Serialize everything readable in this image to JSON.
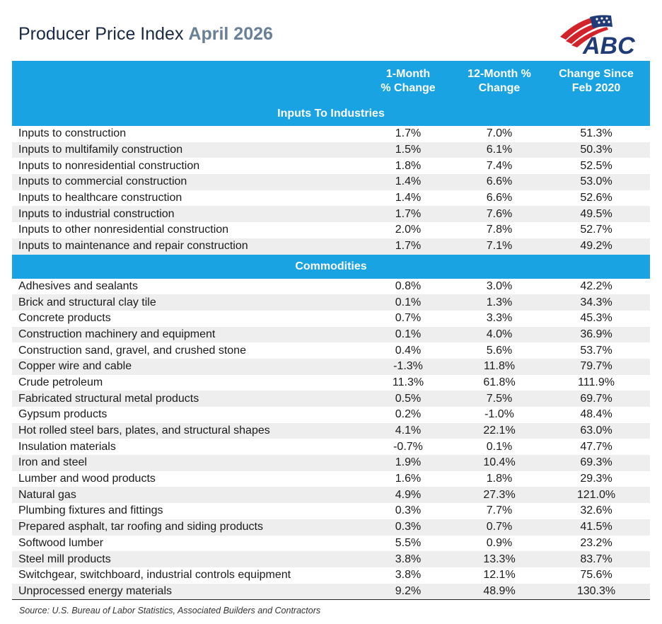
{
  "title": {
    "main": "Producer Price Index",
    "accent": "April 2026"
  },
  "logo": {
    "text": "ABC",
    "colors": {
      "blue": "#1f3b78",
      "red": "#d2232a"
    }
  },
  "table": {
    "headers": [
      "",
      "1-Month\n% Change",
      "12-Month %\nChange",
      "Change Since\nFeb 2020"
    ],
    "sections": [
      {
        "title": "Inputs To Industries",
        "rows": [
          {
            "label": "Inputs to construction",
            "m1": "1.7%",
            "m12": "7.0%",
            "since": "51.3%"
          },
          {
            "label": "Inputs to multifamily construction",
            "m1": "1.5%",
            "m12": "6.1%",
            "since": "50.3%"
          },
          {
            "label": "Inputs to nonresidential construction",
            "m1": "1.8%",
            "m12": "7.4%",
            "since": "52.5%"
          },
          {
            "label": "Inputs to commercial construction",
            "m1": "1.4%",
            "m12": "6.6%",
            "since": "53.0%"
          },
          {
            "label": "Inputs to healthcare construction",
            "m1": "1.4%",
            "m12": "6.6%",
            "since": "52.6%"
          },
          {
            "label": "Inputs to industrial construction",
            "m1": "1.7%",
            "m12": "7.6%",
            "since": "49.5%"
          },
          {
            "label": "Inputs to other nonresidential construction",
            "m1": "2.0%",
            "m12": "7.8%",
            "since": "52.7%"
          },
          {
            "label": "Inputs to maintenance and repair construction",
            "m1": "1.7%",
            "m12": "7.1%",
            "since": "49.2%"
          }
        ]
      },
      {
        "title": "Commodities",
        "rows": [
          {
            "label": "Adhesives and sealants",
            "m1": "0.8%",
            "m12": "3.0%",
            "since": "42.2%"
          },
          {
            "label": "Brick and structural clay tile",
            "m1": "0.1%",
            "m12": "1.3%",
            "since": "34.3%"
          },
          {
            "label": "Concrete products",
            "m1": "0.7%",
            "m12": "3.3%",
            "since": "45.3%"
          },
          {
            "label": "Construction machinery and equipment",
            "m1": "0.1%",
            "m12": "4.0%",
            "since": "36.9%"
          },
          {
            "label": "Construction sand, gravel, and crushed stone",
            "m1": "0.4%",
            "m12": "5.6%",
            "since": "53.7%"
          },
          {
            "label": "Copper wire and cable",
            "m1": "-1.3%",
            "m12": "11.8%",
            "since": "79.7%"
          },
          {
            "label": "Crude petroleum",
            "m1": "11.3%",
            "m12": "61.8%",
            "since": "111.9%"
          },
          {
            "label": "Fabricated structural metal products",
            "m1": "0.5%",
            "m12": "7.5%",
            "since": "69.7%"
          },
          {
            "label": "Gypsum products",
            "m1": "0.2%",
            "m12": "-1.0%",
            "since": "48.4%"
          },
          {
            "label": "Hot rolled steel bars, plates, and structural shapes",
            "m1": "4.1%",
            "m12": "22.1%",
            "since": "63.0%"
          },
          {
            "label": "Insulation materials",
            "m1": "-0.7%",
            "m12": "0.1%",
            "since": "47.7%"
          },
          {
            "label": "Iron and steel",
            "m1": "1.9%",
            "m12": "10.4%",
            "since": "69.3%"
          },
          {
            "label": "Lumber and wood products",
            "m1": "1.6%",
            "m12": "1.8%",
            "since": "29.3%"
          },
          {
            "label": "Natural gas",
            "m1": "4.9%",
            "m12": "27.3%",
            "since": "121.0%"
          },
          {
            "label": "Plumbing fixtures and fittings",
            "m1": "0.3%",
            "m12": "7.7%",
            "since": "32.6%"
          },
          {
            "label": "Prepared asphalt, tar roofing and siding products",
            "m1": "0.3%",
            "m12": "0.7%",
            "since": "41.5%"
          },
          {
            "label": "Softwood lumber",
            "m1": "5.5%",
            "m12": "0.9%",
            "since": "23.2%"
          },
          {
            "label": "Steel mill products",
            "m1": "3.8%",
            "m12": "13.3%",
            "since": "83.7%"
          },
          {
            "label": "Switchgear, switchboard, industrial controls equipment",
            "m1": "3.8%",
            "m12": "12.1%",
            "since": "75.6%"
          },
          {
            "label": "Unprocessed energy materials",
            "m1": "9.2%",
            "m12": "48.9%",
            "since": "130.3%"
          }
        ]
      }
    ]
  },
  "source": "Source: U.S. Bureau of Labor Statistics, Associated Builders and Contractors"
}
